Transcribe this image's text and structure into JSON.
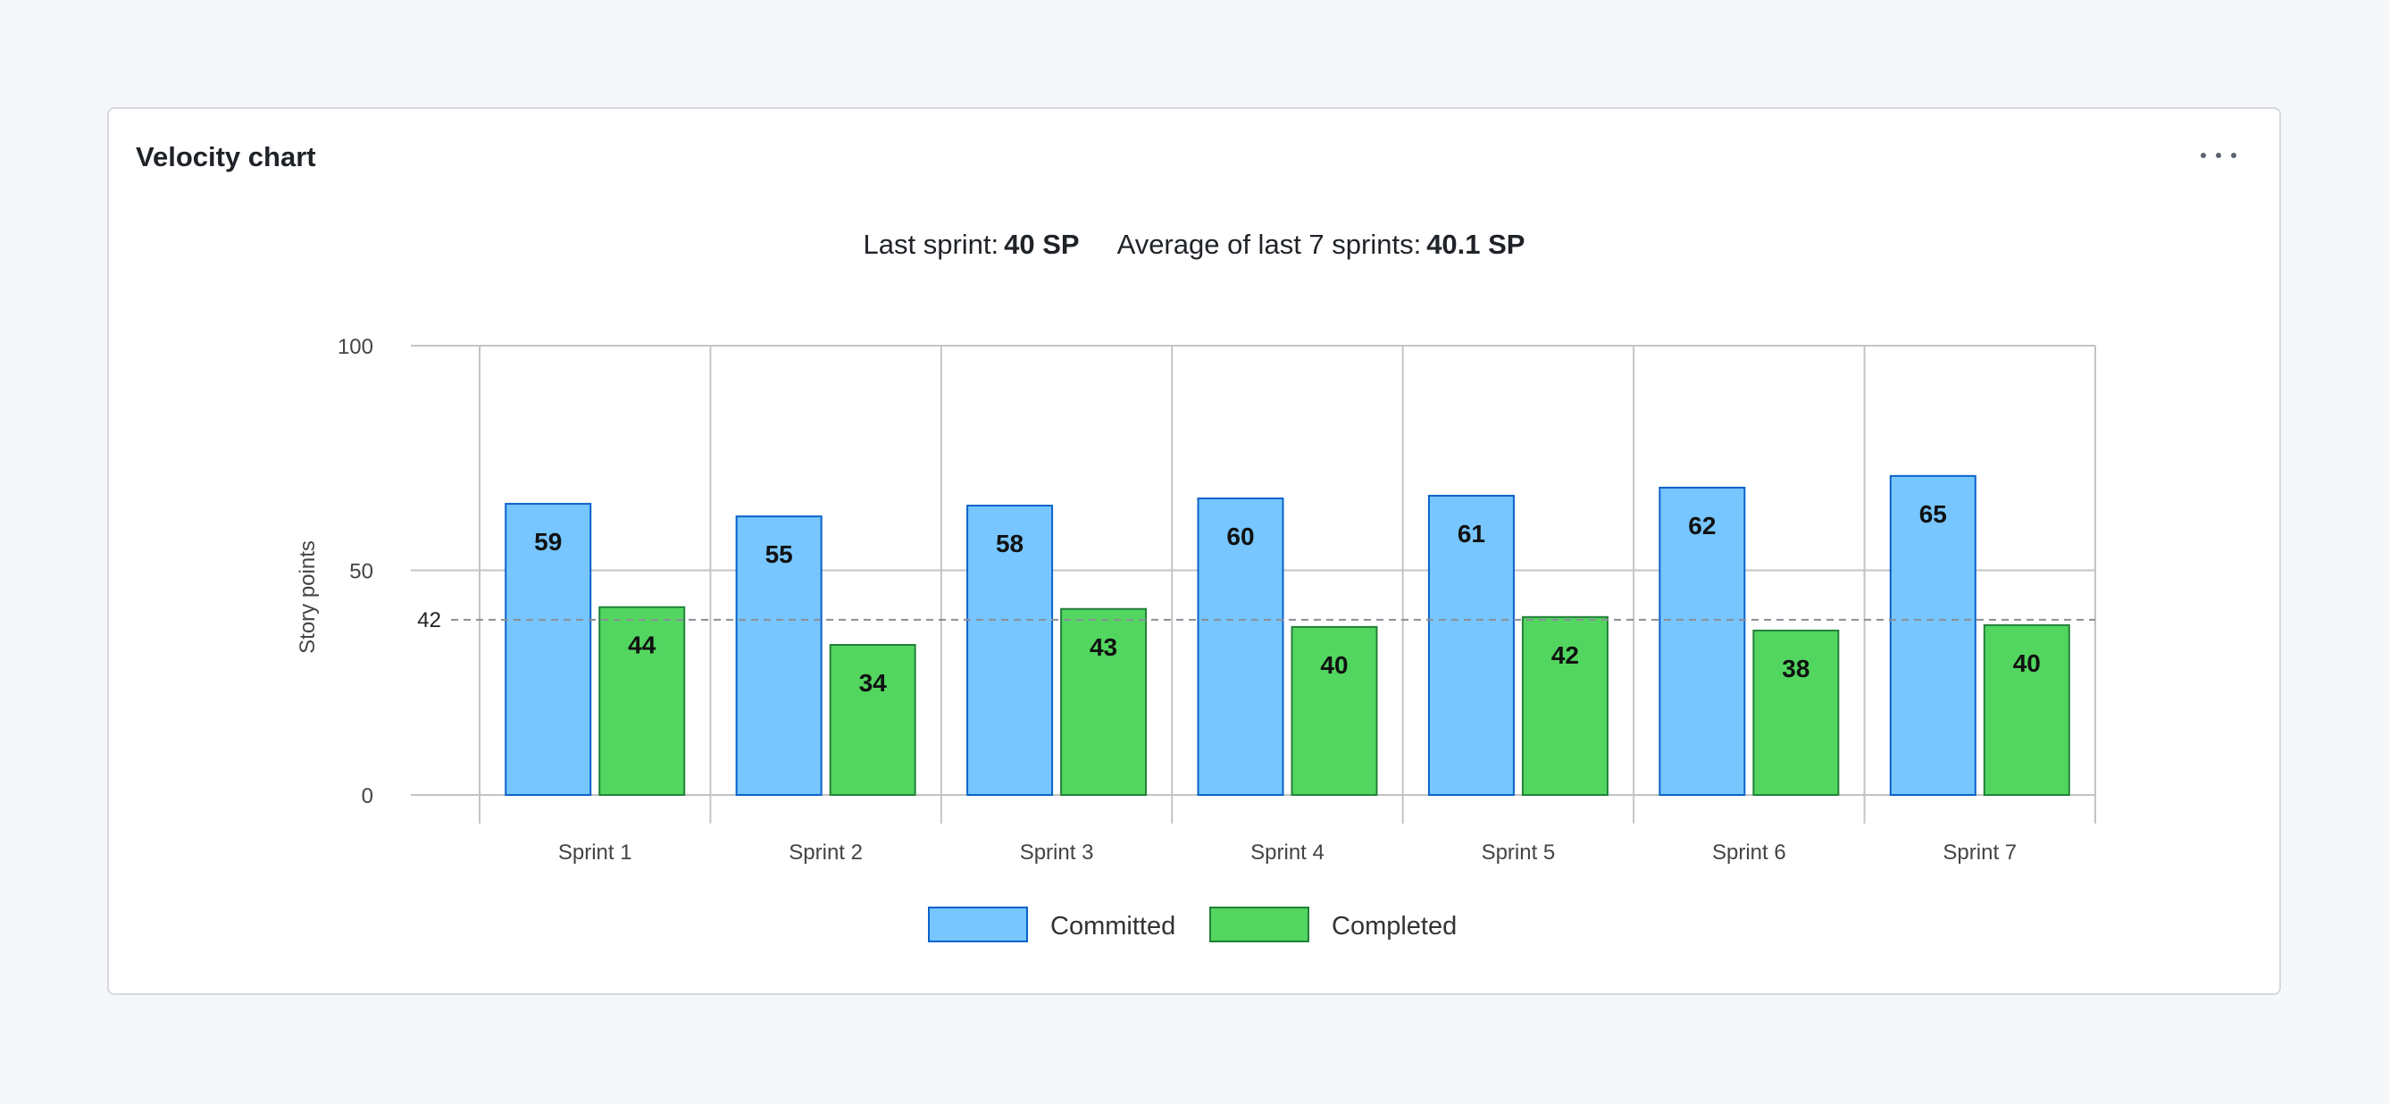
{
  "card": {
    "title": "Velocity chart",
    "more_icon": "more-horizontal-icon"
  },
  "summary": {
    "last_label": "Last sprint:",
    "last_value": "40 SP",
    "avg_label": "Average of last 7 sprints:",
    "avg_value": "40.1 SP"
  },
  "colors": {
    "committed": "#77c6ff",
    "committed_stroke": "#0b63c9",
    "completed": "#52d660",
    "completed_stroke": "#23803a",
    "grid": "#c4c4c4",
    "reference": "#8a8f96"
  },
  "chart_data": {
    "type": "bar",
    "categories": [
      "Sprint 1",
      "Sprint 2",
      "Sprint 3",
      "Sprint 4",
      "Sprint 5",
      "Sprint 6",
      "Sprint 7"
    ],
    "series": [
      {
        "name": "Committed",
        "values": [
          59,
          55,
          58,
          60,
          61,
          62,
          65
        ],
        "bar_heights": [
          64.8,
          62,
          64.4,
          66,
          66.6,
          68.4,
          71
        ]
      },
      {
        "name": "Completed",
        "values": [
          44,
          34,
          43,
          40,
          42,
          38,
          40
        ],
        "bar_heights": [
          41.8,
          33.4,
          41.4,
          37.4,
          39.6,
          36.6,
          37.8
        ]
      }
    ],
    "ylabel": "Story points",
    "ylim": [
      0,
      100
    ],
    "yticks": [
      0,
      50,
      100
    ],
    "reference_line": {
      "value": 39,
      "label": "42"
    },
    "legend": [
      "Committed",
      "Completed"
    ],
    "legend_position": "bottom-center",
    "grid": true
  }
}
